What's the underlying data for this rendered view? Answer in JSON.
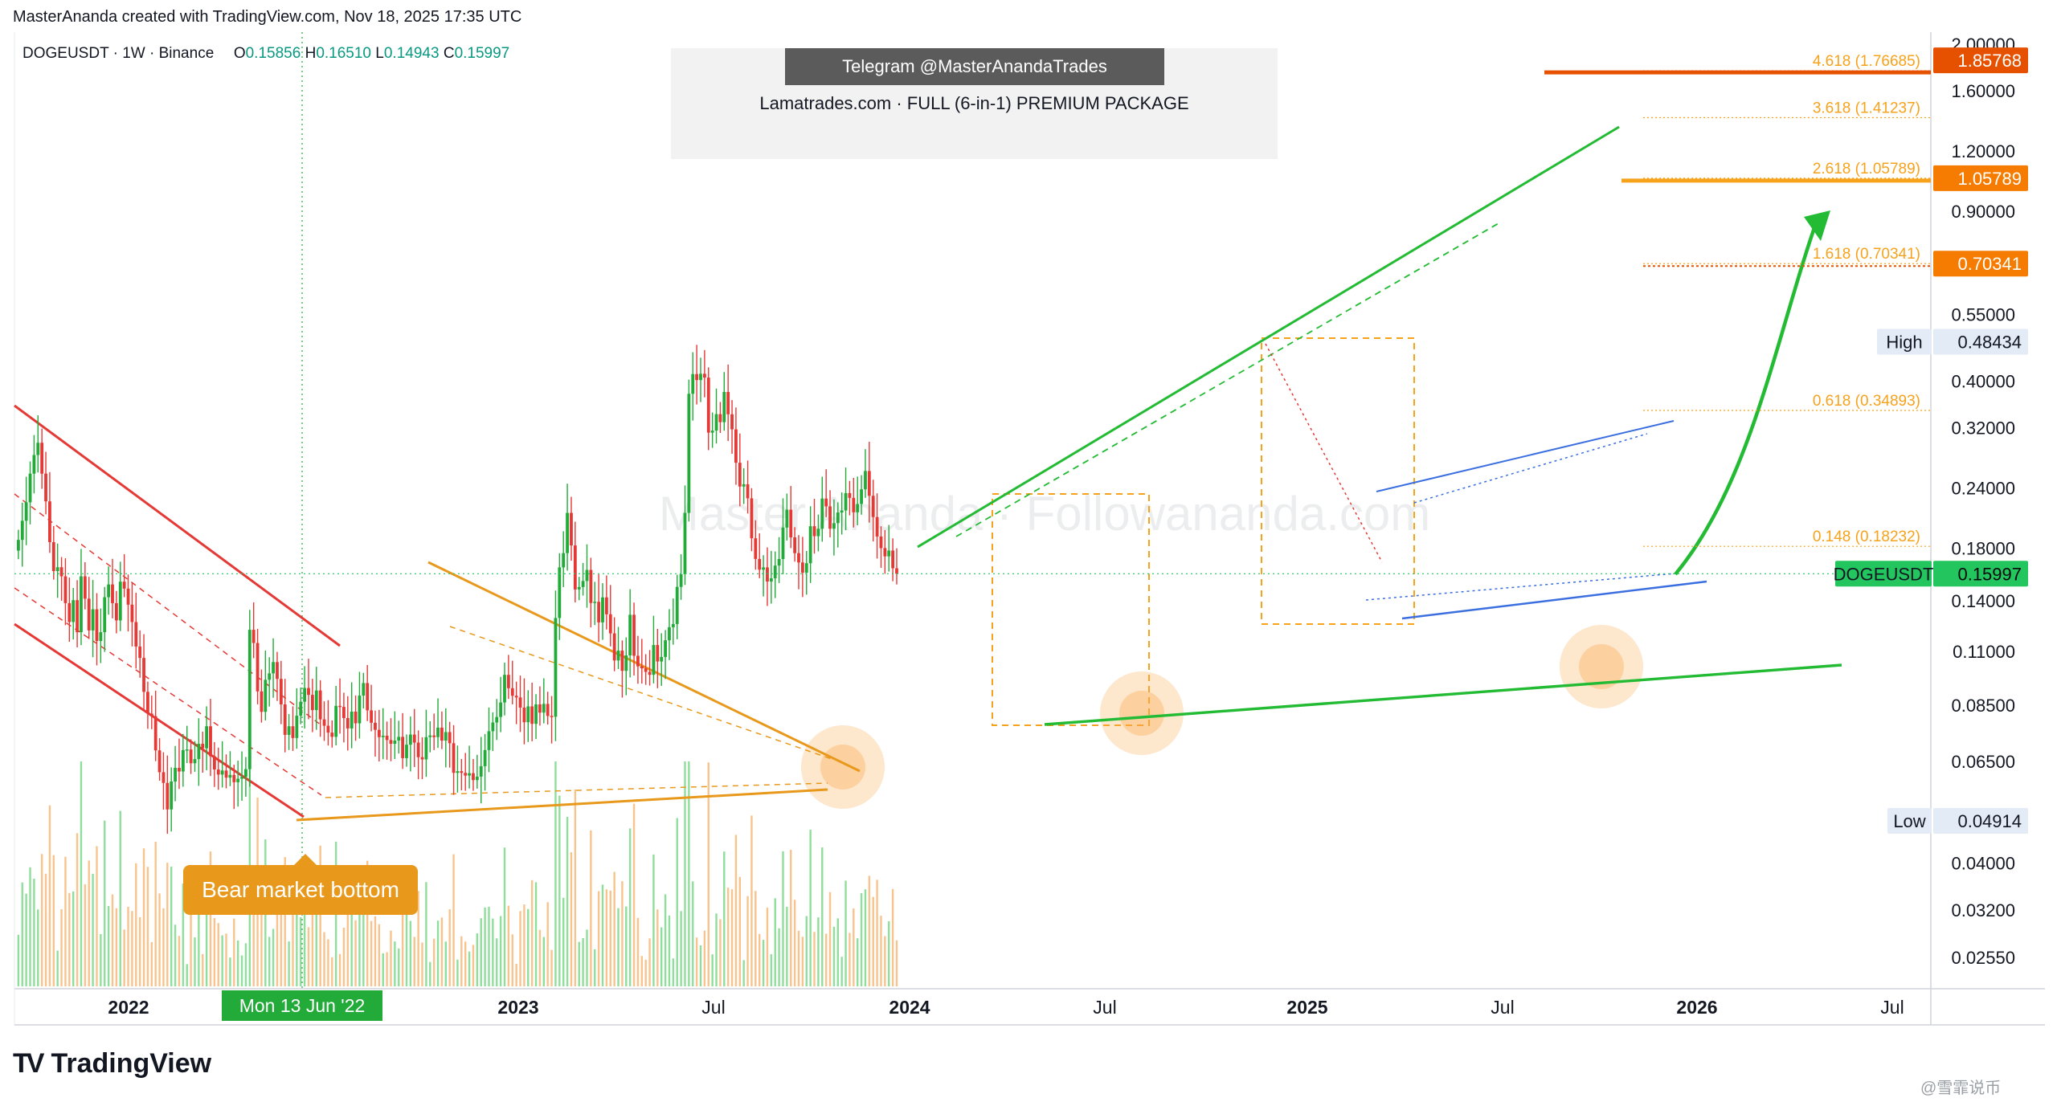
{
  "header": {
    "credit": "MasterAnanda created with TradingView.com, Nov 18, 2025 17:35 UTC"
  },
  "symbol": {
    "name": "DOGEUSDT · 1W · Binance",
    "open_label": "O",
    "open": "0.15856",
    "high_label": "H",
    "high": "0.16510",
    "low_label": "L",
    "low": "0.14943",
    "close_label": "C",
    "close": "0.15997"
  },
  "promo": {
    "telegram": "Telegram @MasterAnandaTrades",
    "subtitle": "Lamatrades.com · FULL (6-in-1) PREMIUM PACKAGE"
  },
  "watermark": "Master Ananda · Followananda.com",
  "annotations": {
    "bear_market_bottom": "Bear market bottom",
    "date_marker": "Mon 13 Jun '22"
  },
  "branding": {
    "logo_text": "TradingView",
    "corner_mark": "@雪霏说币"
  },
  "colors": {
    "up": "#22ab39",
    "down": "#e53935",
    "fib": "#f7a21b",
    "fib_strong": "#e65100",
    "trend_green": "#22bb33",
    "channel_red": "#e53935",
    "channel_blue": "#3b6fe0",
    "triangle_orange": "#e8991c"
  },
  "chart_data": {
    "type": "candlestick",
    "scale": "log",
    "timeframe": "1W",
    "y_ticks": [
      "2.00000",
      "1.60000",
      "1.20000",
      "0.90000",
      "0.55000",
      "0.40000",
      "0.32000",
      "0.24000",
      "0.18000",
      "0.14000",
      "0.11000",
      "0.08500",
      "0.06500",
      "0.04000",
      "0.03200",
      "0.02550"
    ],
    "x_ticks": [
      "2022",
      "2023",
      "Jul",
      "2024",
      "Jul",
      "2025",
      "Jul",
      "2026",
      "Jul"
    ],
    "price_labels": [
      {
        "text": "1.85768",
        "value": 1.85768,
        "color": "#e65100"
      },
      {
        "text": "1.05789",
        "value": 1.05789,
        "color": "#f57c00"
      },
      {
        "text": "0.70341",
        "value": 0.70341,
        "color": "#f57c00"
      },
      {
        "text": "0.48434",
        "label": "High",
        "value": 0.48434,
        "color": "#e3ebf7"
      },
      {
        "text": "0.15997",
        "label": "DOGEUSDT",
        "value": 0.15997,
        "color": "#22c55e"
      },
      {
        "text": "0.04914",
        "label": "Low",
        "value": 0.04914,
        "color": "#e3ebf7"
      }
    ],
    "fib_levels": [
      {
        "ratio": "4.618",
        "value": 1.76685,
        "text": "4.618 (1.76685)"
      },
      {
        "ratio": "3.618",
        "value": 1.41237,
        "text": "3.618 (1.41237)"
      },
      {
        "ratio": "2.618",
        "value": 1.05789,
        "text": "2.618 (1.05789)"
      },
      {
        "ratio": "1.618",
        "value": 0.70341,
        "text": "1.618 (0.70341)"
      },
      {
        "ratio": "0.618",
        "value": 0.34893,
        "text": "0.618 (0.34893)"
      },
      {
        "ratio": "0.148",
        "value": 0.18232,
        "text": "0.148 (0.18232)"
      }
    ],
    "closes": [
      0.188,
      0.206,
      0.225,
      0.258,
      0.282,
      0.299,
      0.258,
      0.226,
      0.186,
      0.162,
      0.165,
      0.158,
      0.139,
      0.127,
      0.141,
      0.121,
      0.158,
      0.142,
      0.122,
      0.135,
      0.116,
      0.121,
      0.143,
      0.152,
      0.139,
      0.128,
      0.154,
      0.149,
      0.138,
      0.127,
      0.113,
      0.107,
      0.091,
      0.082,
      0.081,
      0.0688,
      0.062,
      0.0589,
      0.0519,
      0.0593,
      0.0633,
      0.0622,
      0.0689,
      0.0691,
      0.0647,
      0.066,
      0.071,
      0.0695,
      0.0772,
      0.0669,
      0.0628,
      0.0613,
      0.0625,
      0.0604,
      0.0612,
      0.0591,
      0.0601,
      0.0606,
      0.0629,
      0.1224,
      0.1149,
      0.0912,
      0.0827,
      0.0964,
      0.0994,
      0.1049,
      0.0968,
      0.0857,
      0.0741,
      0.0772,
      0.073,
      0.0812,
      0.0868,
      0.0927,
      0.0897,
      0.0834,
      0.0916,
      0.0798,
      0.0774,
      0.0749,
      0.0734,
      0.0851,
      0.0847,
      0.0803,
      0.0764,
      0.0828,
      0.0783,
      0.0894,
      0.0949,
      0.0833,
      0.0785,
      0.0759,
      0.0733,
      0.0738,
      0.0723,
      0.071,
      0.0721,
      0.0734,
      0.0663,
      0.0707,
      0.0742,
      0.0714,
      0.0666,
      0.0659,
      0.0733,
      0.0739,
      0.0733,
      0.0767,
      0.0721,
      0.0751,
      0.0712,
      0.0618,
      0.0623,
      0.0618,
      0.061,
      0.0617,
      0.0597,
      0.0607,
      0.0638,
      0.0689,
      0.0754,
      0.0786,
      0.0807,
      0.0865,
      0.0987,
      0.0926,
      0.0893,
      0.0886,
      0.0844,
      0.0787,
      0.0849,
      0.0781,
      0.0857,
      0.0824,
      0.0859,
      0.0811,
      0.0808,
      0.1295,
      0.1649,
      0.1765,
      0.2139,
      0.1831,
      0.1484,
      0.1501,
      0.1545,
      0.1629,
      0.1391,
      0.1399,
      0.1268,
      0.1429,
      0.1318,
      0.1203,
      0.1057,
      0.1108,
      0.1006,
      0.1083,
      0.1315,
      0.1081,
      0.1028,
      0.1018,
      0.1001,
      0.0987,
      0.1138,
      0.1052,
      0.1075,
      0.1164,
      0.1239,
      0.1258,
      0.1502,
      0.1596,
      0.2139,
      0.3778,
      0.4151,
      0.4034,
      0.4157,
      0.4082,
      0.3138,
      0.3169,
      0.3428,
      0.3299,
      0.3811,
      0.3426,
      0.3188,
      0.2718,
      0.2426,
      0.2452,
      0.2293,
      0.1895,
      0.1717,
      0.1631,
      0.1649,
      0.1541,
      0.1565,
      0.1663,
      0.1716,
      0.1994,
      0.2172,
      0.1903,
      0.1765,
      0.1688,
      0.1608,
      0.1682,
      0.2007,
      0.1914,
      0.1983,
      0.2291,
      0.2207,
      0.1983,
      0.2037,
      0.2143,
      0.2164,
      0.2351,
      0.2298,
      0.2145,
      0.2232,
      0.2394,
      0.2613,
      0.2321,
      0.2097,
      0.1911,
      0.1808,
      0.1738,
      0.1787,
      0.1642,
      0.16
    ],
    "volume_note": "relative weekly volume histogram along bottom of pane"
  }
}
